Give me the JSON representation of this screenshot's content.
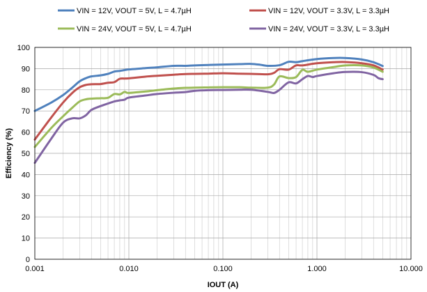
{
  "chart_data": {
    "type": "line",
    "xlabel": "IOUT (A)",
    "ylabel": "Efficiency  (%)",
    "xscale": "log",
    "xlim": [
      0.001,
      10
    ],
    "ylim": [
      0,
      100
    ],
    "grid": true,
    "legend_position": "top",
    "x_tick_labels": [
      "0.001",
      "0.010",
      "0.100",
      "1.000",
      "10.000"
    ],
    "y_tick_labels": [
      "0",
      "10",
      "20",
      "30",
      "40",
      "50",
      "60",
      "70",
      "80",
      "90",
      "100"
    ],
    "series": [
      {
        "name": "VIN = 12V, VOUT = 5V, L = 4.7µH",
        "color": "#4f81bd",
        "points": [
          [
            0.001,
            70
          ],
          [
            0.0015,
            74
          ],
          [
            0.002,
            77.5
          ],
          [
            0.0025,
            81
          ],
          [
            0.003,
            84
          ],
          [
            0.0035,
            85.5
          ],
          [
            0.004,
            86.3
          ],
          [
            0.005,
            86.8
          ],
          [
            0.006,
            87.5
          ],
          [
            0.007,
            88.6
          ],
          [
            0.008,
            88.9
          ],
          [
            0.009,
            89.3
          ],
          [
            0.01,
            89.6
          ],
          [
            0.015,
            90.2
          ],
          [
            0.02,
            90.6
          ],
          [
            0.03,
            91.3
          ],
          [
            0.04,
            91.3
          ],
          [
            0.05,
            91.5
          ],
          [
            0.07,
            91.7
          ],
          [
            0.1,
            91.9
          ],
          [
            0.15,
            92.1
          ],
          [
            0.2,
            92.2
          ],
          [
            0.25,
            91.8
          ],
          [
            0.3,
            91.3
          ],
          [
            0.4,
            91.6
          ],
          [
            0.5,
            93.2
          ],
          [
            0.6,
            93
          ],
          [
            0.7,
            93.5
          ],
          [
            1,
            94.5
          ],
          [
            1.5,
            95
          ],
          [
            2,
            95
          ],
          [
            3,
            94.3
          ],
          [
            4,
            93
          ],
          [
            5,
            91.2
          ]
        ]
      },
      {
        "name": "VIN = 12V, VOUT = 3.3V, L = 3.3µH",
        "color": "#c0504d",
        "points": [
          [
            0.001,
            56.5
          ],
          [
            0.0015,
            67
          ],
          [
            0.002,
            74
          ],
          [
            0.0025,
            78.5
          ],
          [
            0.003,
            81.2
          ],
          [
            0.0035,
            82.3
          ],
          [
            0.004,
            82.6
          ],
          [
            0.005,
            82.7
          ],
          [
            0.006,
            83.3
          ],
          [
            0.007,
            83.6
          ],
          [
            0.008,
            85.2
          ],
          [
            0.009,
            85.3
          ],
          [
            0.01,
            85.4
          ],
          [
            0.015,
            86.2
          ],
          [
            0.02,
            86.6
          ],
          [
            0.03,
            87.1
          ],
          [
            0.04,
            87.4
          ],
          [
            0.05,
            87.5
          ],
          [
            0.07,
            87.6
          ],
          [
            0.1,
            87.8
          ],
          [
            0.15,
            87.6
          ],
          [
            0.2,
            87.5
          ],
          [
            0.3,
            87.3
          ],
          [
            0.35,
            88
          ],
          [
            0.4,
            89.7
          ],
          [
            0.5,
            89.5
          ],
          [
            0.6,
            91.5
          ],
          [
            0.7,
            91.5
          ],
          [
            1,
            92.5
          ],
          [
            1.5,
            93
          ],
          [
            2,
            93.1
          ],
          [
            3,
            92.5
          ],
          [
            4,
            91.5
          ],
          [
            5,
            89.5
          ]
        ]
      },
      {
        "name": "VIN = 24V, VOUT = 5V, L = 4.7µH",
        "color": "#9bbb59",
        "points": [
          [
            0.001,
            53
          ],
          [
            0.0015,
            62
          ],
          [
            0.002,
            67.5
          ],
          [
            0.0025,
            71.5
          ],
          [
            0.003,
            74.5
          ],
          [
            0.0035,
            75.5
          ],
          [
            0.004,
            75.8
          ],
          [
            0.005,
            76
          ],
          [
            0.006,
            76.2
          ],
          [
            0.007,
            78
          ],
          [
            0.008,
            77.8
          ],
          [
            0.009,
            79
          ],
          [
            0.01,
            78.5
          ],
          [
            0.015,
            79.2
          ],
          [
            0.02,
            79.8
          ],
          [
            0.03,
            80.6
          ],
          [
            0.04,
            80.9
          ],
          [
            0.05,
            81
          ],
          [
            0.07,
            81.1
          ],
          [
            0.1,
            81.2
          ],
          [
            0.15,
            81.2
          ],
          [
            0.2,
            81
          ],
          [
            0.3,
            81
          ],
          [
            0.35,
            82.5
          ],
          [
            0.4,
            86.3
          ],
          [
            0.5,
            85.5
          ],
          [
            0.6,
            86
          ],
          [
            0.7,
            89.4
          ],
          [
            0.8,
            88.5
          ],
          [
            1,
            89.5
          ],
          [
            1.5,
            90.7
          ],
          [
            2,
            91.5
          ],
          [
            3,
            91.5
          ],
          [
            4,
            90.5
          ],
          [
            5,
            88.5
          ]
        ]
      },
      {
        "name": "VIN = 24V, VOUT = 3.3V, L = 3.3µH",
        "color": "#8064a2",
        "points": [
          [
            0.001,
            45.5
          ],
          [
            0.0015,
            57
          ],
          [
            0.002,
            64.5
          ],
          [
            0.0025,
            66.5
          ],
          [
            0.003,
            66.5
          ],
          [
            0.0035,
            68
          ],
          [
            0.004,
            70.5
          ],
          [
            0.005,
            72.3
          ],
          [
            0.006,
            73.5
          ],
          [
            0.007,
            74.5
          ],
          [
            0.008,
            75
          ],
          [
            0.009,
            75.3
          ],
          [
            0.01,
            76.3
          ],
          [
            0.015,
            77.3
          ],
          [
            0.02,
            78
          ],
          [
            0.03,
            78.6
          ],
          [
            0.04,
            78.9
          ],
          [
            0.05,
            79.5
          ],
          [
            0.07,
            79.8
          ],
          [
            0.1,
            79.9
          ],
          [
            0.15,
            80
          ],
          [
            0.2,
            80
          ],
          [
            0.3,
            79
          ],
          [
            0.35,
            78.5
          ],
          [
            0.4,
            80
          ],
          [
            0.5,
            83.5
          ],
          [
            0.6,
            83
          ],
          [
            0.7,
            85
          ],
          [
            0.8,
            86.5
          ],
          [
            0.9,
            86
          ],
          [
            1,
            86.5
          ],
          [
            1.5,
            87.8
          ],
          [
            2,
            88.4
          ],
          [
            3,
            88.3
          ],
          [
            4,
            87
          ],
          [
            4.5,
            85.5
          ],
          [
            5,
            85
          ]
        ]
      }
    ]
  }
}
